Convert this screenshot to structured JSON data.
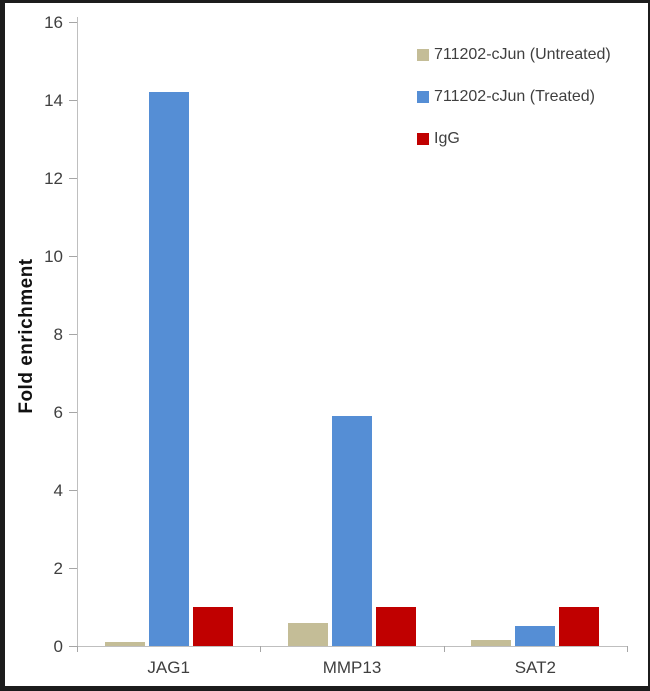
{
  "chart_data": {
    "type": "bar",
    "title": "",
    "ylabel": "Fold enrichment",
    "xlabel": "",
    "ylim": [
      0,
      16
    ],
    "ytick_step": 2,
    "grid": false,
    "legend_position": "top-right",
    "categories": [
      "JAG1",
      "MMP13",
      "SAT2"
    ],
    "series": [
      {
        "name": "711202-cJun (Untreated)",
        "color": "#c4bd97",
        "values": [
          0.1,
          0.6,
          0.15
        ]
      },
      {
        "name": "711202-cJun (Treated)",
        "color": "#558ed5",
        "values": [
          14.2,
          5.9,
          0.5
        ]
      },
      {
        "name": "IgG",
        "color": "#c00000",
        "values": [
          1.0,
          1.0,
          1.0
        ]
      }
    ]
  },
  "frame": {
    "border_color": "#1c1c1c",
    "axis_color": "#bfbfbf"
  }
}
